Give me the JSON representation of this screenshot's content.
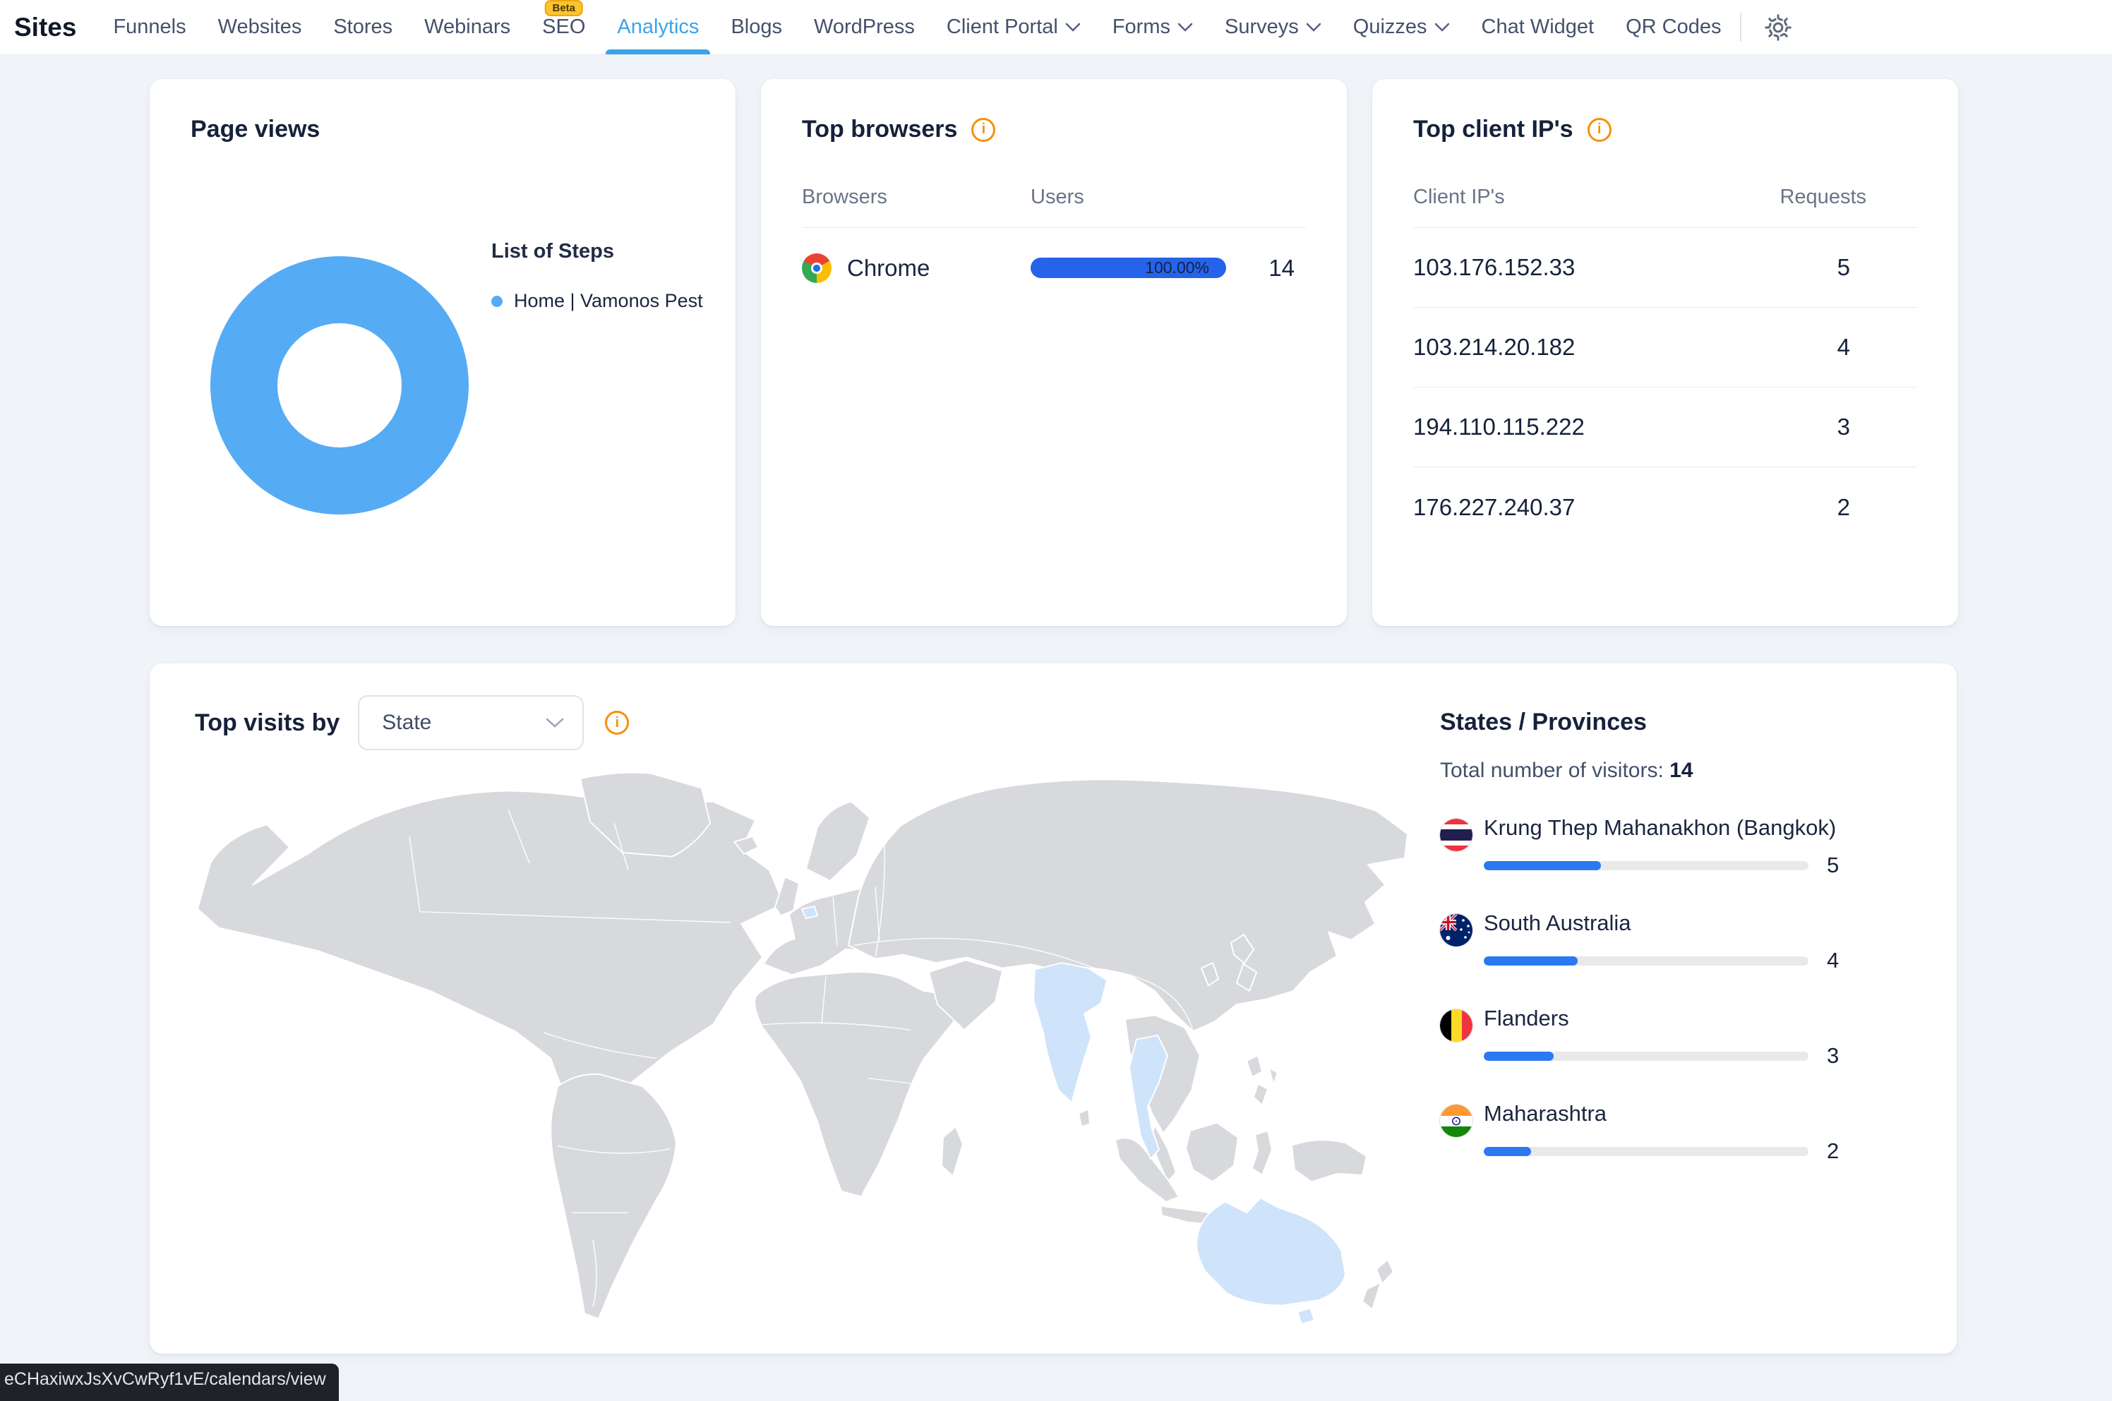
{
  "nav": {
    "brand": "Sites",
    "items": [
      {
        "label": "Funnels"
      },
      {
        "label": "Websites"
      },
      {
        "label": "Stores"
      },
      {
        "label": "Webinars"
      },
      {
        "label": "SEO",
        "badge": "Beta"
      },
      {
        "label": "Analytics",
        "active": true
      },
      {
        "label": "Blogs"
      },
      {
        "label": "WordPress"
      },
      {
        "label": "Client Portal",
        "dropdown": true
      },
      {
        "label": "Forms",
        "dropdown": true
      },
      {
        "label": "Surveys",
        "dropdown": true
      },
      {
        "label": "Quizzes",
        "dropdown": true
      },
      {
        "label": "Chat Widget"
      },
      {
        "label": "QR Codes"
      }
    ]
  },
  "page_views": {
    "title": "Page views",
    "legend_title": "List of Steps",
    "legend": [
      {
        "label": "Home | Vamonos Pest",
        "color": "#56ABF5"
      }
    ]
  },
  "top_browsers": {
    "title": "Top browsers",
    "col_browsers": "Browsers",
    "col_users": "Users",
    "rows": [
      {
        "name": "Chrome",
        "share_label": "100.00%",
        "share_pct": 100,
        "users": "14"
      }
    ]
  },
  "top_client_ips": {
    "title": "Top client IP's",
    "col_ips": "Client IP's",
    "col_requests": "Requests",
    "rows": [
      {
        "ip": "103.176.152.33",
        "requests": "5"
      },
      {
        "ip": "103.214.20.182",
        "requests": "4"
      },
      {
        "ip": "194.110.115.222",
        "requests": "3"
      },
      {
        "ip": "176.227.240.37",
        "requests": "2"
      }
    ]
  },
  "top_visits": {
    "title": "Top visits by",
    "selector_value": "State",
    "panel": {
      "title": "States / Provinces",
      "total_label": "Total number of visitors: ",
      "total_value": "14",
      "rows": [
        {
          "name": "Krung Thep Mahanakhon (Bangkok)",
          "value": "5",
          "pct": 36,
          "flag": "thailand"
        },
        {
          "name": "South Australia",
          "value": "4",
          "pct": 29,
          "flag": "australia"
        },
        {
          "name": "Flanders",
          "value": "3",
          "pct": 21.5,
          "flag": "belgium"
        },
        {
          "name": "Maharashtra",
          "value": "2",
          "pct": 14.5,
          "flag": "india"
        }
      ]
    },
    "map": {
      "land_color": "#D7D9DC",
      "highlight_color": "#CFE3FB",
      "highlighted": [
        "India",
        "Thailand",
        "Australia",
        "Belgium"
      ]
    }
  },
  "status_bar": {
    "text": "eCHaxiwxJsXvCwRyf1vE/calendars/view"
  },
  "chart_data": [
    {
      "type": "pie",
      "donut": true,
      "title": "Page views",
      "legend_title": "List of Steps",
      "labels": [
        "Home | Vamonos Pest"
      ],
      "values": [
        100
      ],
      "unit": "%",
      "colors": [
        "#56ABF5"
      ]
    },
    {
      "type": "bar",
      "title": "Top browsers",
      "categories": [
        "Chrome"
      ],
      "values": [
        14
      ],
      "percent_labels": [
        "100.00%"
      ],
      "ylabel": "Users"
    },
    {
      "type": "bar",
      "title": "States / Provinces",
      "total": 14,
      "categories": [
        "Krung Thep Mahanakhon (Bangkok)",
        "South Australia",
        "Flanders",
        "Maharashtra"
      ],
      "values": [
        5,
        4,
        3,
        2
      ]
    }
  ]
}
